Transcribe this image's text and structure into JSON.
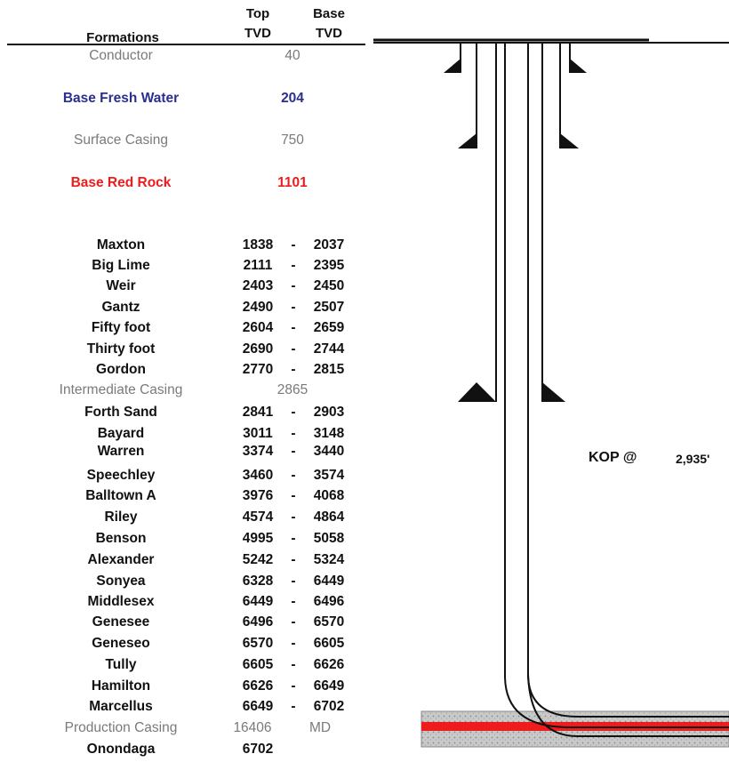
{
  "header": {
    "formations_label": "Formations",
    "top_line1": "Top",
    "top_line2": "TVD",
    "base_line1": "Base",
    "base_line2": "TVD"
  },
  "markers": [
    {
      "name": "Conductor",
      "value": "40",
      "style": "casing"
    },
    {
      "name": "Base Fresh Water",
      "value": "204",
      "style": "blue"
    },
    {
      "name": "Surface Casing",
      "value": "750",
      "style": "casing"
    },
    {
      "name": "Base Red Rock",
      "value": "1101",
      "style": "red"
    }
  ],
  "formations": [
    {
      "name": "Maxton",
      "top": "1838",
      "base": "2037"
    },
    {
      "name": "Big Lime",
      "top": "2111",
      "base": "2395"
    },
    {
      "name": "Weir",
      "top": "2403",
      "base": "2450"
    },
    {
      "name": "Gantz",
      "top": "2490",
      "base": "2507"
    },
    {
      "name": "Fifty foot",
      "top": "2604",
      "base": "2659"
    },
    {
      "name": "Thirty foot",
      "top": "2690",
      "base": "2744"
    },
    {
      "name": "Gordon",
      "top": "2770",
      "base": "2815"
    },
    {
      "name": "Intermediate Casing",
      "value": "2865",
      "style": "casing"
    },
    {
      "name": "Forth Sand",
      "top": "2841",
      "base": "2903"
    },
    {
      "name": "Bayard",
      "top": "3011",
      "base": "3148"
    },
    {
      "name": "Warren",
      "top": "3374",
      "base": "3440"
    },
    {
      "name": "Speechley",
      "top": "3460",
      "base": "3574"
    },
    {
      "name": "Balltown A",
      "top": "3976",
      "base": "4068"
    },
    {
      "name": "Riley",
      "top": "4574",
      "base": "4864"
    },
    {
      "name": "Benson",
      "top": "4995",
      "base": "5058"
    },
    {
      "name": "Alexander",
      "top": "5242",
      "base": "5324"
    },
    {
      "name": "Sonyea",
      "top": "6328",
      "base": "6449"
    },
    {
      "name": "Middlesex",
      "top": "6449",
      "base": "6496"
    },
    {
      "name": "Genesee",
      "top": "6496",
      "base": "6570"
    },
    {
      "name": "Geneseo",
      "top": "6570",
      "base": "6605"
    },
    {
      "name": "Tully",
      "top": "6605",
      "base": "6626"
    },
    {
      "name": "Hamilton",
      "top": "6626",
      "base": "6649"
    },
    {
      "name": "Marcellus",
      "top": "6649",
      "base": "6702"
    },
    {
      "name": "Production Casing",
      "top": "16406",
      "unit": "MD",
      "style": "production"
    },
    {
      "name": "Onondaga",
      "top": "6702"
    }
  ],
  "dash": "-",
  "kop": {
    "label": "KOP @",
    "value": "2,935'"
  },
  "colors": {
    "text": "#111111",
    "casing_gray": "#7a7a7a",
    "fresh_water_blue": "#2a2f8f",
    "red_rock_red": "#ee1c1c",
    "target_red": "#ee1c1c",
    "target_stipple": "#9a9a9a"
  }
}
